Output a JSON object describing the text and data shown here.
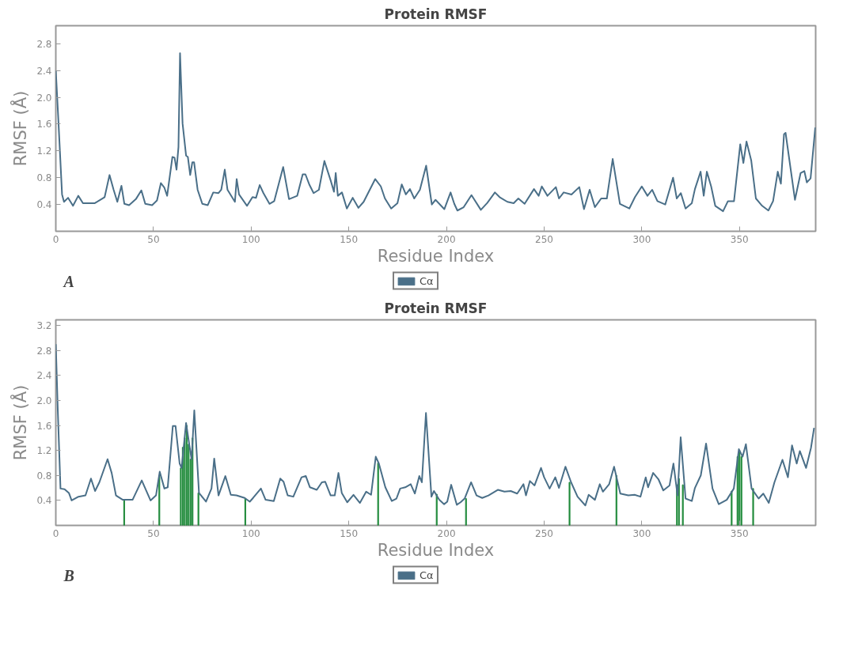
{
  "chart_data": [
    {
      "type": "line",
      "title": "Protein RMSF",
      "xlabel": "Residue Index",
      "ylabel": "RMSF (Å)",
      "annotations": [
        "A"
      ],
      "legend": "bottom",
      "grid": false,
      "xlim": [
        0,
        389
      ],
      "ylim": [
        0,
        3.07
      ],
      "xticks": [
        0,
        50,
        100,
        150,
        200,
        250,
        300,
        350
      ],
      "yticks": [
        0.4,
        0.8,
        1.2,
        1.6,
        {
          "value": 2.0,
          "label": "2.0"
        },
        2.4,
        2.8
      ],
      "series": [
        {
          "name": "Cα",
          "color": "#4a6f88",
          "x": [
            0,
            1.4,
            3.2,
            4.2,
            6.3,
            8.8,
            11.5,
            13.9,
            20,
            25,
            27.5,
            29.6,
            31.5,
            33.6,
            35.1,
            37.5,
            41,
            43.8,
            45.8,
            49.3,
            51.8,
            53.8,
            55.6,
            57,
            59.7,
            60.8,
            61.8,
            62.8,
            63.6,
            64.9,
            66.7,
            67.6,
            68.8,
            69.9,
            70.8,
            72.6,
            75,
            77.8,
            80.6,
            83.3,
            84.7,
            86.5,
            87.9,
            91.7,
            92.6,
            93.8,
            97.9,
            100.7,
            102.5,
            104.4,
            106.3,
            109.4,
            111.8,
            116.4,
            119.4,
            123.6,
            126.4,
            127.8,
            129.9,
            132,
            134.7,
            137.5,
            140.7,
            142.4,
            143.3,
            144.4,
            146.5,
            149,
            152,
            154.9,
            157.6,
            163.5,
            166.4,
            168.5,
            171.7,
            174.9,
            177.1,
            179.2,
            181.3,
            183.5,
            186.4,
            189.6,
            192.5,
            194.4,
            198.9,
            202.1,
            204,
            205.6,
            208.8,
            212.8,
            217.6,
            220.8,
            224.8,
            227.2,
            231.2,
            234.4,
            236.8,
            240,
            244.8,
            247.2,
            248.8,
            251.7,
            256,
            257.6,
            260,
            264,
            268,
            270.4,
            273.3,
            276,
            279.2,
            282.1,
            285.1,
            288.8,
            293.6,
            296.5,
            300,
            302.9,
            305.3,
            308,
            312,
            316,
            317.9,
            320,
            322.4,
            325.6,
            327.2,
            330.1,
            331.7,
            333.3,
            335.5,
            337.6,
            341.6,
            344.1,
            347.2,
            350.4,
            352,
            353.6,
            356,
            358.4,
            361.6,
            364.8,
            367.2,
            369.6,
            371.2,
            372.8,
            373.6,
            378.4,
            381.3,
            383.2,
            384.5,
            386.4,
            388.8
          ],
          "values": [
            2.4,
            1.61,
            0.55,
            0.44,
            0.5,
            0.38,
            0.53,
            0.42,
            0.42,
            0.51,
            0.84,
            0.62,
            0.44,
            0.68,
            0.41,
            0.39,
            0.48,
            0.61,
            0.41,
            0.39,
            0.46,
            0.72,
            0.65,
            0.53,
            1.11,
            1.1,
            0.92,
            1.26,
            2.66,
            1.61,
            1.13,
            1.11,
            0.84,
            1.03,
            1.03,
            0.62,
            0.41,
            0.39,
            0.58,
            0.57,
            0.62,
            0.92,
            0.62,
            0.44,
            0.78,
            0.55,
            0.38,
            0.51,
            0.5,
            0.69,
            0.57,
            0.41,
            0.45,
            0.96,
            0.48,
            0.53,
            0.85,
            0.85,
            0.69,
            0.57,
            0.62,
            1.05,
            0.76,
            0.59,
            0.87,
            0.53,
            0.58,
            0.34,
            0.5,
            0.35,
            0.44,
            0.78,
            0.67,
            0.49,
            0.34,
            0.42,
            0.7,
            0.55,
            0.63,
            0.49,
            0.62,
            0.98,
            0.4,
            0.47,
            0.33,
            0.58,
            0.41,
            0.31,
            0.36,
            0.54,
            0.32,
            0.42,
            0.58,
            0.51,
            0.44,
            0.42,
            0.49,
            0.41,
            0.63,
            0.53,
            0.67,
            0.53,
            0.66,
            0.49,
            0.58,
            0.55,
            0.66,
            0.33,
            0.62,
            0.36,
            0.49,
            0.49,
            1.08,
            0.41,
            0.34,
            0.51,
            0.67,
            0.53,
            0.62,
            0.45,
            0.4,
            0.8,
            0.49,
            0.57,
            0.34,
            0.42,
            0.63,
            0.89,
            0.53,
            0.89,
            0.67,
            0.38,
            0.3,
            0.45,
            0.45,
            1.3,
            1.02,
            1.34,
            1.06,
            0.49,
            0.38,
            0.31,
            0.45,
            0.89,
            0.71,
            1.45,
            1.47,
            0.47,
            0.87,
            0.9,
            0.73,
            0.79,
            1.55
          ]
        }
      ]
    },
    {
      "type": "line",
      "title": "Protein RMSF",
      "xlabel": "Residue Index",
      "ylabel": "RMSF (Å)",
      "annotations": [
        "B"
      ],
      "legend": "bottom",
      "grid": false,
      "xlim": [
        0,
        389
      ],
      "ylim": [
        0,
        3.29
      ],
      "xticks": [
        0,
        50,
        100,
        150,
        200,
        250,
        300,
        350
      ],
      "yticks": [
        0.4,
        0.8,
        1.2,
        1.6,
        {
          "value": 2.0,
          "label": "2.0"
        },
        2.4,
        2.8,
        3.2
      ],
      "series": [
        {
          "type": "bar",
          "color": "#1f8a3a",
          "x": [
            35,
            53,
            64,
            65,
            66,
            67,
            68,
            69,
            70,
            73,
            97,
            165,
            195,
            210,
            263,
            287,
            318,
            319,
            321,
            346,
            349,
            350,
            351,
            357
          ],
          "values": [
            0.41,
            0.8,
            0.92,
            1.25,
            1.4,
            1.6,
            1.3,
            1.06,
            1.4,
            0.52,
            0.43,
            1.0,
            0.5,
            0.43,
            0.69,
            0.8,
            0.65,
            0.75,
            0.65,
            0.55,
            1.1,
            1.2,
            1.1,
            0.59
          ]
        },
        {
          "name": "Cα",
          "color": "#4a6f88",
          "x": [
            0,
            1,
            2.4,
            4.5,
            6.7,
            8.1,
            11.6,
            15.2,
            18,
            20.1,
            22.3,
            26.5,
            28.6,
            30.8,
            34.3,
            39.3,
            44,
            48.5,
            51.3,
            53.2,
            55.6,
            57.3,
            59.9,
            61.3,
            63.4,
            64.4,
            66.7,
            68.4,
            69.5,
            70.9,
            73.3,
            76.9,
            79.7,
            81.1,
            83.3,
            86.8,
            89.6,
            92.5,
            96.7,
            99.3,
            101,
            105,
            107.4,
            111.6,
            114.9,
            116.6,
            118.7,
            121.6,
            125.8,
            128,
            130.1,
            133.6,
            136.2,
            137.9,
            140.7,
            142.8,
            144.7,
            146.4,
            149.2,
            152.4,
            155.7,
            158.9,
            161.4,
            163.8,
            165.4,
            168.7,
            172,
            174.4,
            176.3,
            178.9,
            181.7,
            183.8,
            186.1,
            187.4,
            189.5,
            192.3,
            193.6,
            196.3,
            198.8,
            200.4,
            202.4,
            205.3,
            207.2,
            209.3,
            212.6,
            215.4,
            218.3,
            221.5,
            226.4,
            229.7,
            232.9,
            236.2,
            239.4,
            240.7,
            242.7,
            245.1,
            248.4,
            250,
            252.8,
            255.7,
            257.6,
            260.9,
            263.8,
            267.1,
            271.1,
            272.8,
            276,
            278.5,
            280.1,
            283.3,
            285.8,
            289,
            293.1,
            296.3,
            299.3,
            302,
            303.2,
            305.8,
            308.5,
            311,
            314.2,
            316.2,
            318.3,
            319.9,
            322.4,
            325.6,
            327.2,
            330.2,
            332.9,
            336.2,
            339.4,
            343.5,
            347.1,
            349.7,
            351.6,
            353.3,
            356.2,
            359.8,
            362.2,
            365,
            367.9,
            372,
            374.8,
            376.9,
            379.3,
            380.9,
            384.1,
            386.6,
            388.2
          ],
          "values": [
            2.9,
            1.86,
            0.59,
            0.58,
            0.52,
            0.4,
            0.46,
            0.48,
            0.75,
            0.55,
            0.69,
            1.06,
            0.84,
            0.48,
            0.41,
            0.41,
            0.72,
            0.4,
            0.48,
            0.86,
            0.59,
            0.61,
            1.59,
            1.59,
            0.99,
            0.92,
            1.64,
            1.28,
            1.06,
            1.84,
            0.52,
            0.38,
            0.59,
            1.07,
            0.48,
            0.79,
            0.49,
            0.48,
            0.44,
            0.38,
            0.44,
            0.59,
            0.41,
            0.39,
            0.75,
            0.7,
            0.48,
            0.46,
            0.77,
            0.79,
            0.61,
            0.57,
            0.69,
            0.7,
            0.48,
            0.48,
            0.84,
            0.52,
            0.37,
            0.49,
            0.36,
            0.54,
            0.49,
            1.1,
            0.99,
            0.61,
            0.39,
            0.43,
            0.59,
            0.61,
            0.66,
            0.51,
            0.79,
            0.69,
            1.8,
            0.46,
            0.55,
            0.41,
            0.34,
            0.38,
            0.65,
            0.33,
            0.37,
            0.43,
            0.69,
            0.48,
            0.44,
            0.48,
            0.57,
            0.54,
            0.55,
            0.51,
            0.66,
            0.48,
            0.71,
            0.64,
            0.92,
            0.77,
            0.59,
            0.77,
            0.6,
            0.94,
            0.69,
            0.46,
            0.32,
            0.49,
            0.41,
            0.66,
            0.54,
            0.66,
            0.94,
            0.51,
            0.48,
            0.49,
            0.46,
            0.77,
            0.61,
            0.84,
            0.74,
            0.56,
            0.64,
            0.99,
            0.48,
            1.41,
            0.43,
            0.39,
            0.6,
            0.8,
            1.31,
            0.59,
            0.34,
            0.41,
            0.59,
            1.22,
            1.1,
            1.3,
            0.59,
            0.43,
            0.51,
            0.36,
            0.69,
            1.05,
            0.77,
            1.28,
            0.99,
            1.19,
            0.92,
            1.24,
            1.56
          ]
        }
      ]
    }
  ]
}
